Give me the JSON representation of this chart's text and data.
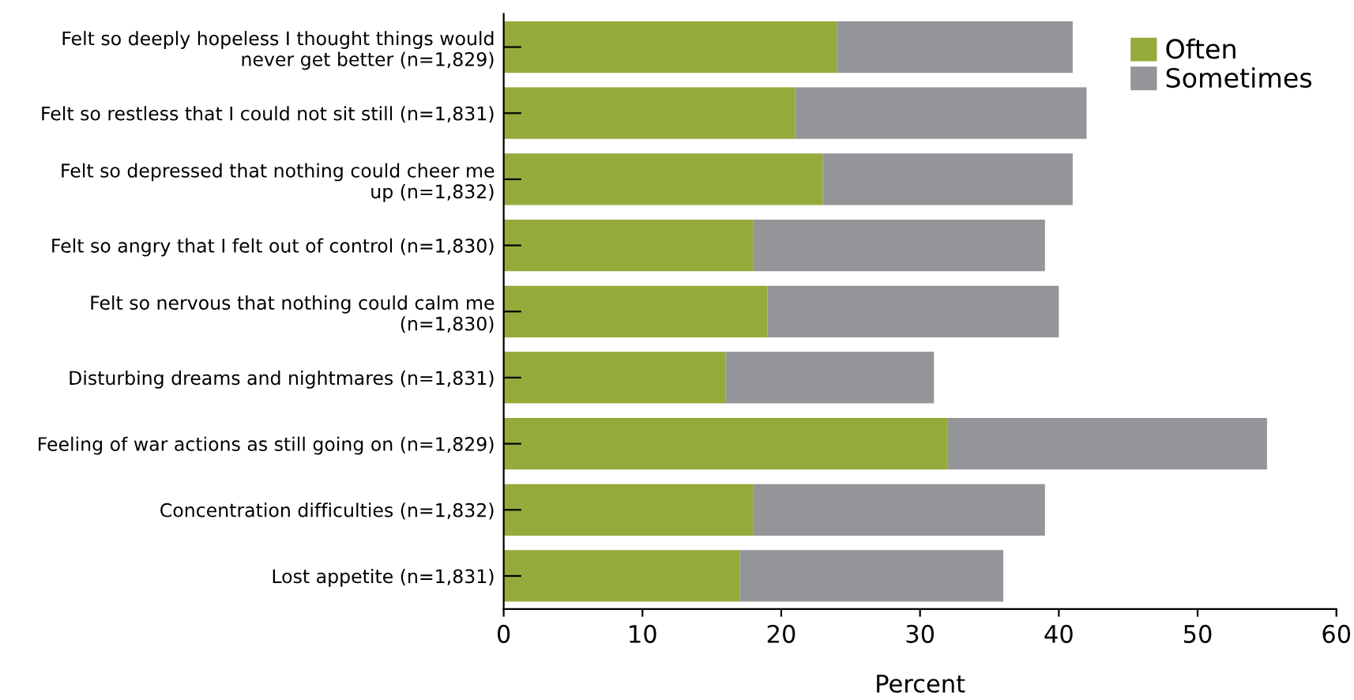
{
  "chart_data": {
    "type": "bar",
    "orientation": "horizontal",
    "stacked": true,
    "categories": [
      "Felt so deeply hopeless I thought things would\nnever get better (n=1,829)",
      "Felt so restless that I could not sit still (n=1,831)",
      "Felt so depressed that nothing could cheer me\nup (n=1,832)",
      "Felt so angry that I felt out of control (n=1,830)",
      "Felt so nervous that nothing could calm me\n(n=1,830)",
      "Disturbing dreams and nightmares (n=1,831)",
      "Feeling of war actions as still going on (n=1,829)",
      "Concentration difficulties (n=1,832)",
      "Lost appetite (n=1,831)"
    ],
    "series": [
      {
        "name": "Often",
        "color": "#94ab3c",
        "values": [
          24,
          21,
          23,
          18,
          19,
          16,
          32,
          18,
          17
        ]
      },
      {
        "name": "Sometimes",
        "color": "#939598",
        "values": [
          17,
          21,
          18,
          21,
          21,
          15,
          23,
          21,
          19
        ]
      }
    ],
    "xlabel": "Percent",
    "xlim": [
      0,
      60
    ],
    "xticks": [
      0,
      10,
      20,
      30,
      40,
      50,
      60
    ],
    "legend": "top right",
    "grid": false
  }
}
